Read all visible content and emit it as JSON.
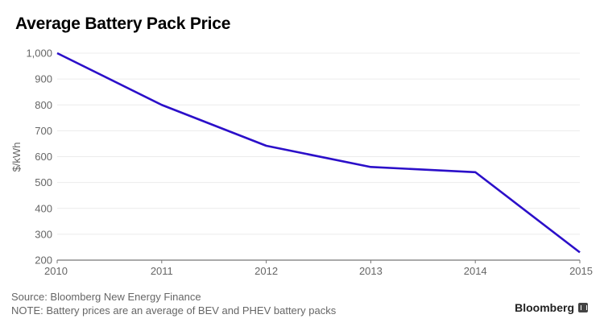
{
  "chart_data": {
    "type": "line",
    "title": "Average Battery Pack Price",
    "xlabel": "",
    "ylabel": "$/kWh",
    "x": [
      "2010",
      "2011",
      "2012",
      "2013",
      "2014",
      "2015"
    ],
    "series": [
      {
        "name": "Average Battery Pack Price",
        "values": [
          1000,
          800,
          642,
          560,
          540,
          230
        ],
        "color": "#2b0fc9"
      }
    ],
    "ylim": [
      200,
      1000
    ],
    "yticks": [
      200,
      300,
      400,
      500,
      600,
      700,
      800,
      900,
      1000
    ],
    "ytick_labels": [
      "200",
      "300",
      "400",
      "500",
      "600",
      "700",
      "800",
      "900",
      "1,000"
    ],
    "grid": true,
    "legend": "none"
  },
  "footer": {
    "source": "Source: Bloomberg New Energy Finance",
    "note": "NOTE: Battery prices are an average of BEV and PHEV battery packs"
  },
  "brand": {
    "name": "Bloomberg",
    "icon": "bloomberg-chart-icon"
  }
}
